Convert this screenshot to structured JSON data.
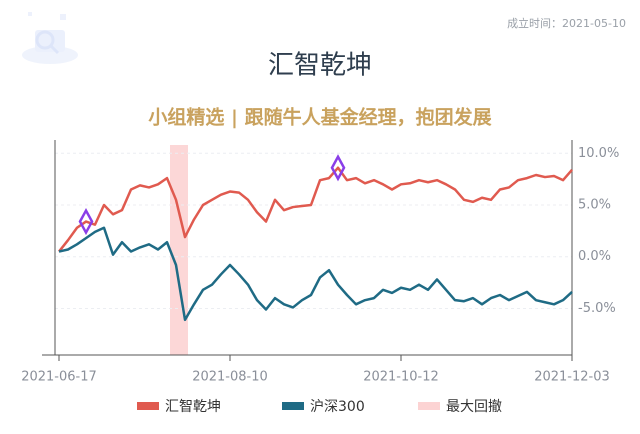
{
  "founded": "成立时间：2021-05-10",
  "chart_data": {
    "type": "line",
    "title": "汇智乾坤",
    "subtitle": "小组精选 | 跟随牛人基金经理，抱团发展",
    "categories": [
      "2021-06-17",
      null,
      null,
      null,
      null,
      null,
      null,
      null,
      null,
      null,
      null,
      null,
      null,
      null,
      null,
      null,
      null,
      null,
      null,
      "2021-08-10",
      null,
      null,
      null,
      null,
      null,
      null,
      null,
      null,
      null,
      null,
      null,
      null,
      null,
      null,
      null,
      null,
      null,
      null,
      "2021-10-12",
      null,
      null,
      null,
      null,
      null,
      null,
      null,
      null,
      null,
      null,
      null,
      null,
      null,
      null,
      null,
      null,
      null,
      null,
      "2021-12-03"
    ],
    "series": [
      {
        "name": "汇智乾坤",
        "color": "#e05a4f",
        "values": [
          0.5,
          1.6,
          2.8,
          3.4,
          3.1,
          5.0,
          4.1,
          4.5,
          6.5,
          6.9,
          6.7,
          7.0,
          7.6,
          5.5,
          1.9,
          3.6,
          5.0,
          5.5,
          6.0,
          6.3,
          6.2,
          5.5,
          4.3,
          3.4,
          5.5,
          4.5,
          4.8,
          4.9,
          5.0,
          7.4,
          7.6,
          8.6,
          7.4,
          7.6,
          7.1,
          7.4,
          7.0,
          6.5,
          7.0,
          7.1,
          7.4,
          7.2,
          7.4,
          7.0,
          6.5,
          5.5,
          5.3,
          5.7,
          5.5,
          6.5,
          6.7,
          7.4,
          7.6,
          7.9,
          7.7,
          7.8,
          7.4,
          8.4
        ]
      },
      {
        "name": "沪深300",
        "color": "#1f6b85",
        "values": [
          0.5,
          0.7,
          1.2,
          1.8,
          2.4,
          2.8,
          0.2,
          1.4,
          0.5,
          0.9,
          1.2,
          0.7,
          1.4,
          -0.8,
          -6.1,
          -4.6,
          -3.2,
          -2.7,
          -1.7,
          -0.8,
          -1.7,
          -2.7,
          -4.2,
          -5.1,
          -4.0,
          -4.6,
          -4.9,
          -4.2,
          -3.7,
          -2.0,
          -1.3,
          -2.7,
          -3.7,
          -4.6,
          -4.2,
          -4.0,
          -3.2,
          -3.5,
          -3.0,
          -3.2,
          -2.7,
          -3.2,
          -2.2,
          -3.2,
          -4.2,
          -4.3,
          -4.0,
          -4.6,
          -4.0,
          -3.7,
          -4.2,
          -3.8,
          -3.4,
          -4.2,
          -4.4,
          -4.6,
          -4.2,
          -3.4
        ]
      }
    ],
    "drawdown": {
      "name": "最大回撤",
      "color": "#fcd3d3",
      "start": 12,
      "end": 14
    },
    "signals": {
      "color": "#8a3ee8",
      "indices": [
        3,
        31
      ]
    },
    "ylim": [
      -9.5,
      10.8
    ],
    "yticks": [
      {
        "value": 10,
        "label": "10.0%"
      },
      {
        "value": 5,
        "label": "5.0%"
      },
      {
        "value": 0,
        "label": "0.0%"
      },
      {
        "value": -5,
        "label": "-5.0%"
      }
    ],
    "grid": true
  }
}
